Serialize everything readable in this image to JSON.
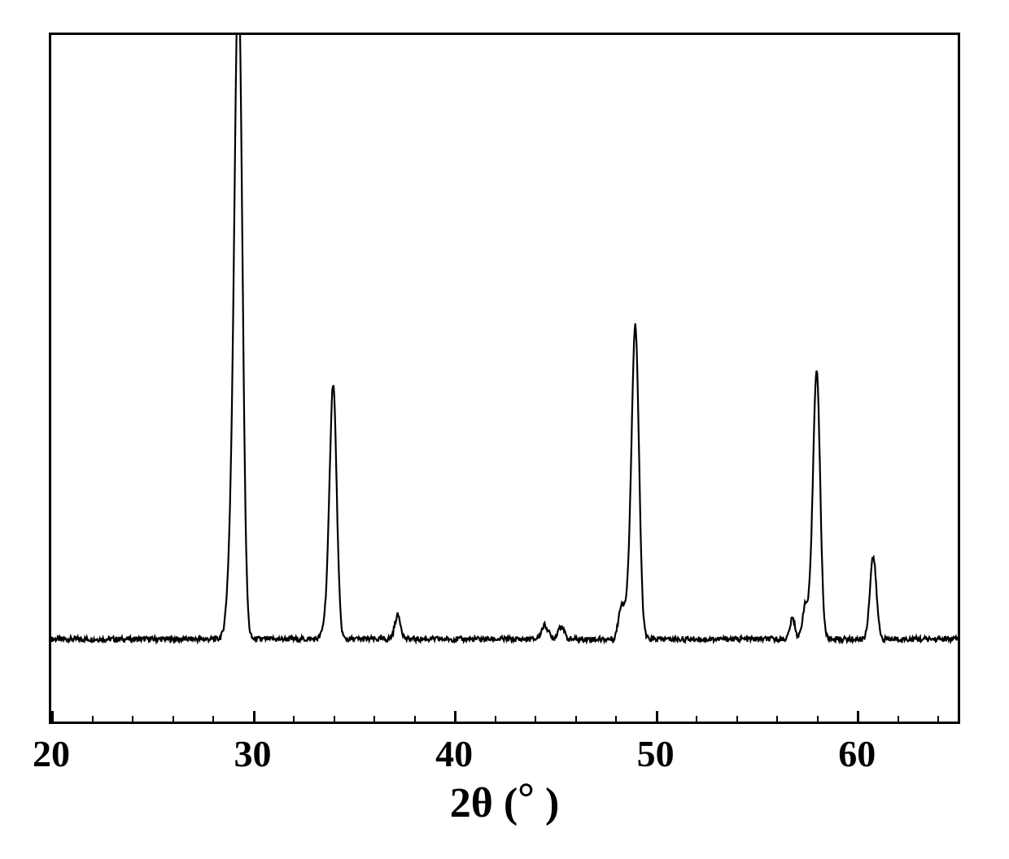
{
  "chart": {
    "type": "xrd-line",
    "xlabel_prefix": "2",
    "xlabel_theta": "θ",
    "xlabel_unit_open": " (",
    "xlabel_deg": "°",
    "xlabel_unit_close": " )",
    "xlim": [
      20,
      65
    ],
    "ylim": [
      0,
      100
    ],
    "xtick_major": [
      20,
      30,
      40,
      50,
      60
    ],
    "xtick_labels": [
      "20",
      "30",
      "40",
      "50",
      "60"
    ],
    "xtick_minor": [
      22,
      24,
      26,
      28,
      32,
      34,
      36,
      38,
      42,
      44,
      46,
      48,
      52,
      54,
      56,
      58,
      62,
      64
    ],
    "axis_label_fontsize": 52,
    "tick_label_fontsize": 46,
    "line_color": "#000000",
    "line_width": 2.2,
    "background_color": "#ffffff",
    "border_color": "#000000",
    "border_width": 3,
    "baseline_y": 12,
    "noise_amplitude": 0.8,
    "peaks": [
      {
        "x": 29.3,
        "height": 92,
        "width": 0.45,
        "shoulder_left": 0.15
      },
      {
        "x": 34.0,
        "height": 36,
        "width": 0.4,
        "shoulder_left": 0.1
      },
      {
        "x": 37.2,
        "height": 3.5,
        "width": 0.35
      },
      {
        "x": 44.5,
        "height": 2.0,
        "width": 0.4
      },
      {
        "x": 45.3,
        "height": 2.0,
        "width": 0.35
      },
      {
        "x": 48.3,
        "height": 4.5,
        "width": 0.35
      },
      {
        "x": 49.0,
        "height": 44,
        "width": 0.42,
        "shoulder_left": 0.12
      },
      {
        "x": 56.8,
        "height": 3.0,
        "width": 0.3
      },
      {
        "x": 57.4,
        "height": 4.0,
        "width": 0.3
      },
      {
        "x": 58.0,
        "height": 38,
        "width": 0.4,
        "shoulder_left": 0.1
      },
      {
        "x": 60.8,
        "height": 12,
        "width": 0.38
      }
    ]
  }
}
